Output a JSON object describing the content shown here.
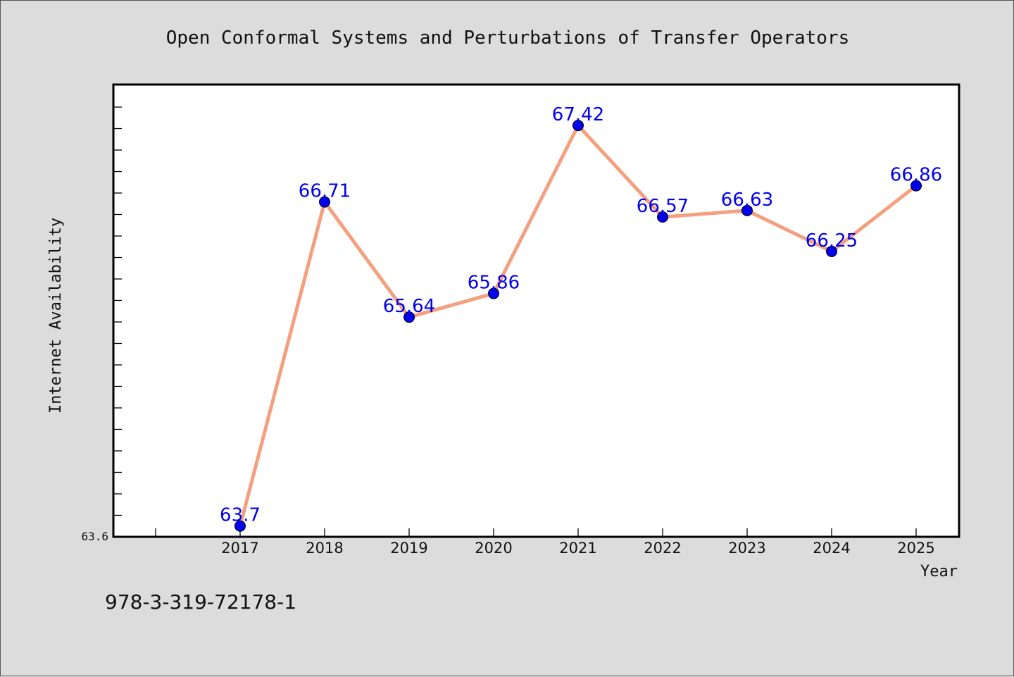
{
  "chart_data": {
    "type": "line",
    "title": "Open Conformal Systems and Perturbations of Transfer Operators",
    "xlabel": "Year",
    "ylabel": "Internet Availability",
    "categories": [
      "2017",
      "2018",
      "2019",
      "2020",
      "2021",
      "2022",
      "2023",
      "2024",
      "2025"
    ],
    "series": [
      {
        "values": [
          63.7,
          66.71,
          65.64,
          65.86,
          67.42,
          66.57,
          66.63,
          66.25,
          66.86
        ]
      }
    ],
    "data_labels": [
      "63.7",
      "66.71",
      "65.64",
      "65.86",
      "67.42",
      "66.57",
      "66.63",
      "66.25",
      "66.86"
    ],
    "ylim": [
      63.6,
      67.8
    ],
    "ymin_label": "63.6",
    "grid": false,
    "colors": {
      "line": "#f4a07e",
      "marker": "#0000ee",
      "label": "#0000ee",
      "background": "#dcdcdc",
      "plot_bg": "#ffffff"
    }
  },
  "footer": {
    "isbn": "978-3-319-72178-1"
  }
}
